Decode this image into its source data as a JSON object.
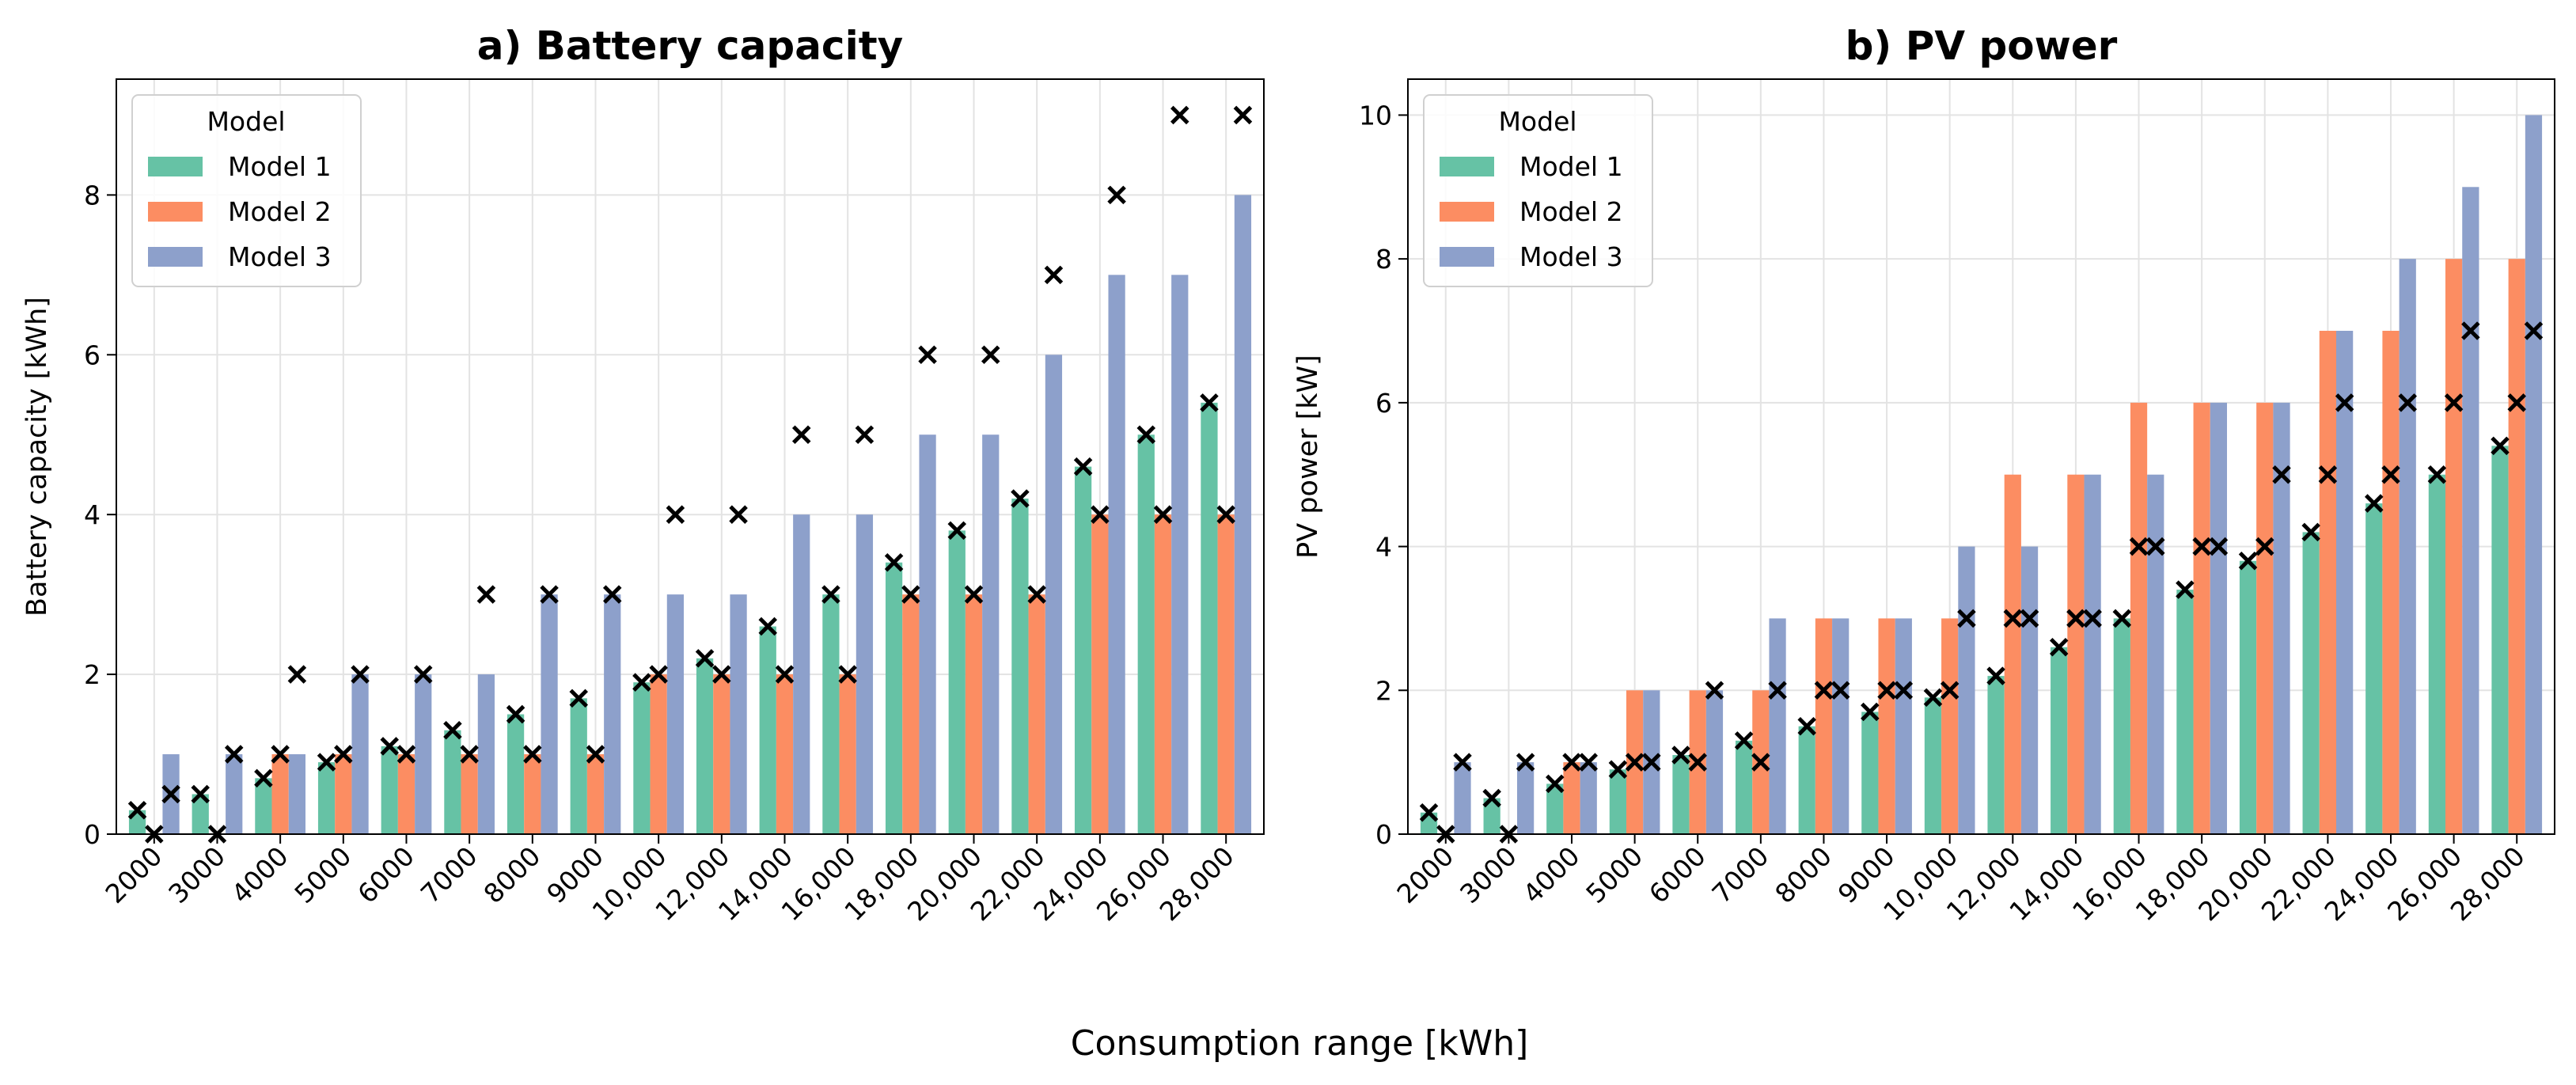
{
  "figure": {
    "xlabel": "Consumption range [kWh]"
  },
  "chart_data": [
    {
      "type": "bar",
      "title": "a) Battery capacity",
      "xlabel": "",
      "ylabel": "Battery capacity [kWh]",
      "ylim": [
        0,
        9.45
      ],
      "yticks": [
        0,
        2,
        4,
        6,
        8
      ],
      "grid": true,
      "legend_title": "Model",
      "legend_position": "top-left",
      "categories": [
        "2000",
        "3000",
        "4000",
        "5000",
        "6000",
        "7000",
        "8000",
        "9000",
        "10,000",
        "12,000",
        "14,000",
        "16,000",
        "18,000",
        "20,000",
        "22,000",
        "24,000",
        "26,000",
        "28,000"
      ],
      "series": [
        {
          "name": "Model 1",
          "color": "#66c2a5",
          "values": [
            0.3,
            0.5,
            0.7,
            0.9,
            1.1,
            1.3,
            1.5,
            1.7,
            1.9,
            2.2,
            2.6,
            3.0,
            3.4,
            3.8,
            4.2,
            4.6,
            5.0,
            5.4
          ]
        },
        {
          "name": "Model 2",
          "color": "#fc8d62",
          "values": [
            0,
            0,
            1,
            1,
            1,
            1,
            1,
            1,
            2,
            2,
            2,
            2,
            3,
            3,
            3,
            4,
            4,
            4
          ]
        },
        {
          "name": "Model 3",
          "color": "#8da0cb",
          "values": [
            1,
            1,
            1,
            2,
            2,
            2,
            3,
            3,
            3,
            3,
            4,
            4,
            5,
            5,
            6,
            7,
            7,
            8
          ]
        }
      ],
      "markers": [
        [
          0.3,
          0.5,
          0.7,
          0.9,
          1.1,
          1.3,
          1.5,
          1.7,
          1.9,
          2.2,
          2.6,
          3.0,
          3.4,
          3.8,
          4.2,
          4.6,
          5.0,
          5.4
        ],
        [
          0,
          0,
          1,
          1,
          1,
          1,
          1,
          1,
          2,
          2,
          2,
          2,
          3,
          3,
          3,
          4,
          4,
          4
        ],
        [
          0.5,
          1,
          2,
          2,
          2,
          3,
          3,
          3,
          4,
          4,
          5,
          5,
          6,
          6,
          7,
          8,
          9,
          9
        ]
      ]
    },
    {
      "type": "bar",
      "title": "b) PV power",
      "xlabel": "",
      "ylabel": "PV power [kW]",
      "ylim": [
        0,
        10.5
      ],
      "yticks": [
        0,
        2,
        4,
        6,
        8,
        10
      ],
      "grid": true,
      "legend_title": "Model",
      "legend_position": "top-left",
      "categories": [
        "2000",
        "3000",
        "4000",
        "5000",
        "6000",
        "7000",
        "8000",
        "9000",
        "10,000",
        "12,000",
        "14,000",
        "16,000",
        "18,000",
        "20,000",
        "22,000",
        "24,000",
        "26,000",
        "28,000"
      ],
      "series": [
        {
          "name": "Model 1",
          "color": "#66c2a5",
          "values": [
            0.3,
            0.5,
            0.7,
            0.9,
            1.1,
            1.3,
            1.5,
            1.7,
            1.9,
            2.2,
            2.6,
            3.0,
            3.4,
            3.8,
            4.2,
            4.6,
            5.0,
            5.4
          ]
        },
        {
          "name": "Model 2",
          "color": "#fc8d62",
          "values": [
            0,
            0,
            1,
            2,
            2,
            2,
            3,
            3,
            3,
            5,
            5,
            6,
            6,
            6,
            7,
            7,
            8,
            8
          ]
        },
        {
          "name": "Model 3",
          "color": "#8da0cb",
          "values": [
            1,
            1,
            1,
            2,
            2,
            3,
            3,
            3,
            4,
            4,
            5,
            5,
            6,
            6,
            7,
            8,
            9,
            10
          ]
        }
      ],
      "markers": [
        [
          0.3,
          0.5,
          0.7,
          0.9,
          1.1,
          1.3,
          1.5,
          1.7,
          1.9,
          2.2,
          2.6,
          3.0,
          3.4,
          3.8,
          4.2,
          4.6,
          5.0,
          5.4
        ],
        [
          0,
          0,
          1,
          1,
          1,
          1,
          2,
          2,
          2,
          3,
          3,
          4,
          4,
          4,
          5,
          5,
          6,
          6
        ],
        [
          1,
          1,
          1,
          1,
          2,
          2,
          2,
          2,
          3,
          3,
          3,
          4,
          4,
          5,
          6,
          6,
          7,
          7
        ]
      ]
    }
  ]
}
